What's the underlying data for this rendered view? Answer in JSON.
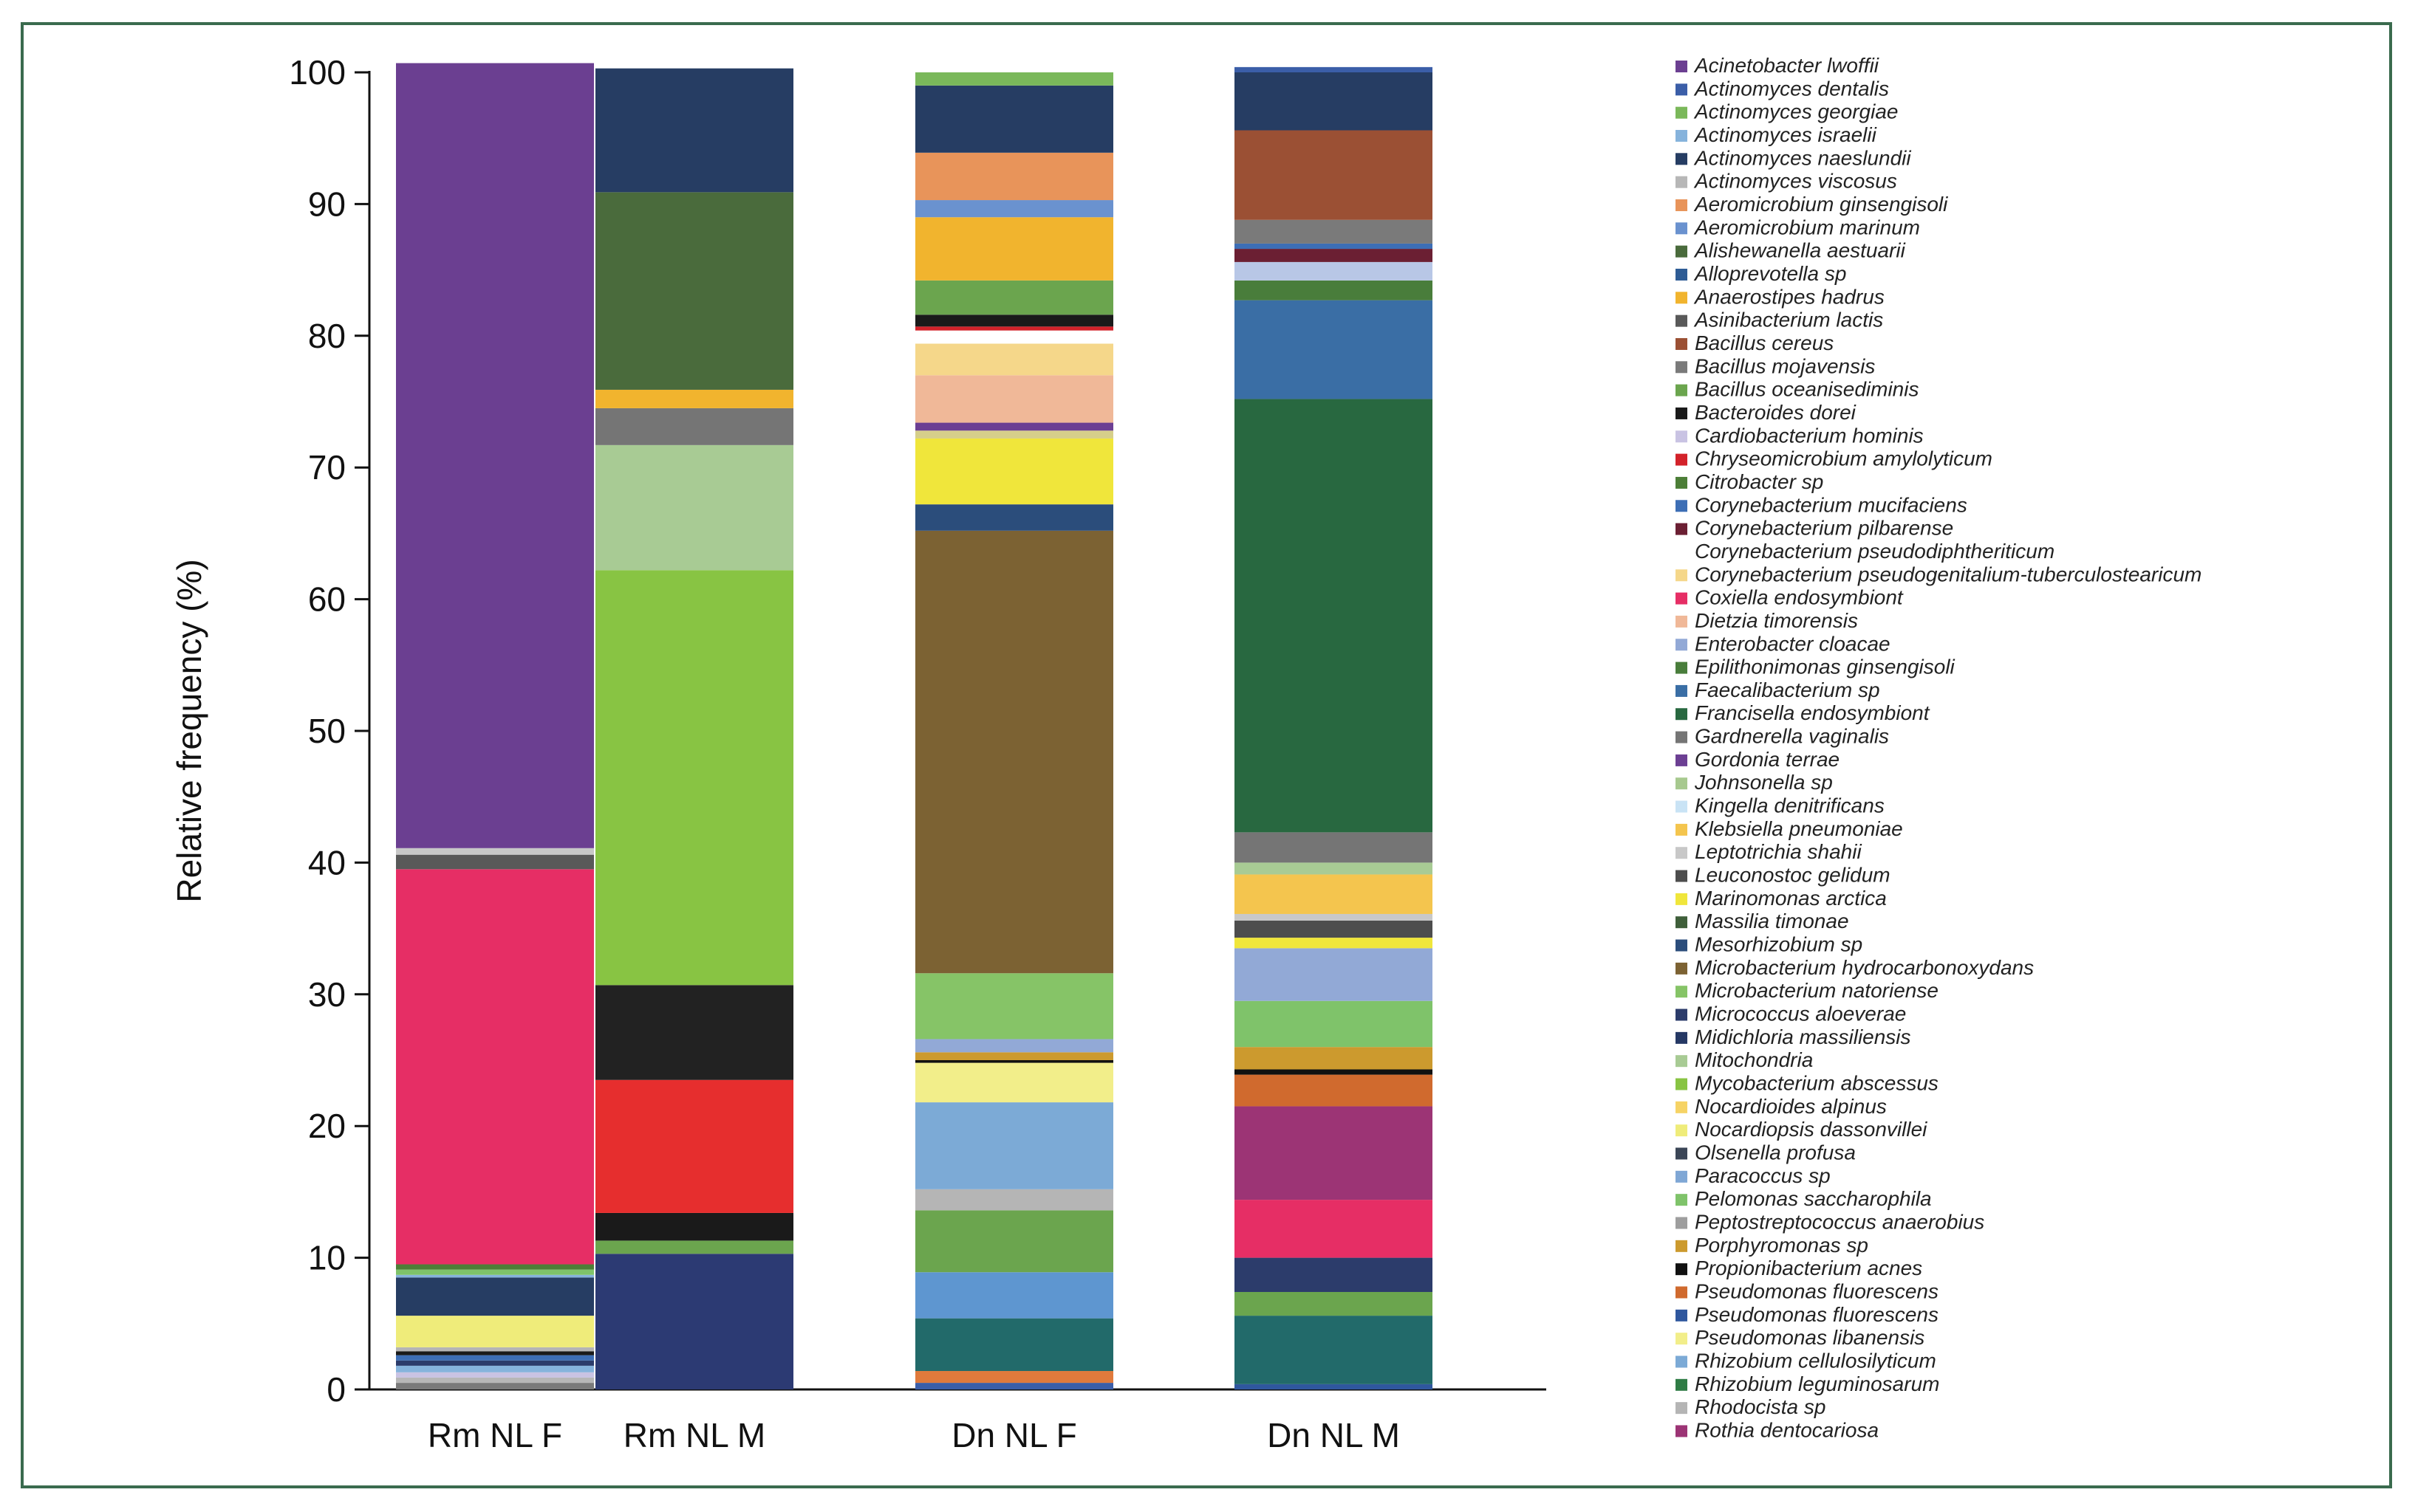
{
  "chart_data": {
    "type": "bar",
    "stacked": true,
    "title": "",
    "xlabel": "",
    "ylabel": "Relative frequency (%)",
    "ylim": [
      0,
      100
    ],
    "yticks": [
      0,
      10,
      20,
      30,
      40,
      50,
      60,
      70,
      80,
      90,
      100
    ],
    "categories": [
      "Rm NL F",
      "Rm NL M",
      "Dn NL F",
      "Dn NL M"
    ],
    "legend_position": "right",
    "species": [
      {
        "name": "Acinetobacter lwoffii",
        "color": "#6b3f91"
      },
      {
        "name": "Actinomyces dentalis",
        "color": "#3b5ea8"
      },
      {
        "name": "Actinomyces georgiae",
        "color": "#7ab85a"
      },
      {
        "name": "Actinomyces israelii",
        "color": "#86b3dc"
      },
      {
        "name": "Actinomyces naeslundii",
        "color": "#263d63"
      },
      {
        "name": "Actinomyces viscosus",
        "color": "#b7b7b7"
      },
      {
        "name": "Aeromicrobium ginsengisoli",
        "color": "#e8945a"
      },
      {
        "name": "Aeromicrobium marinum",
        "color": "#6a92cf"
      },
      {
        "name": "Alishewanella aestuarii",
        "color": "#4a6b3c"
      },
      {
        "name": "Alloprevotella sp",
        "color": "#2e5c95"
      },
      {
        "name": "Anaerostipes hadrus",
        "color": "#f1b42e"
      },
      {
        "name": "Asinibacterium lactis",
        "color": "#595959"
      },
      {
        "name": "Bacillus cereus",
        "color": "#9b5034"
      },
      {
        "name": "Bacillus mojavensis",
        "color": "#7a7a7a"
      },
      {
        "name": "Bacillus oceanisediminis",
        "color": "#6ba54e"
      },
      {
        "name": "Bacteroides dorei",
        "color": "#1a1a1a"
      },
      {
        "name": "Cardiobacterium hominis",
        "color": "#c9c3e3"
      },
      {
        "name": "Chryseomicrobium amylolyticum",
        "color": "#d3222a"
      },
      {
        "name": "Citrobacter sp",
        "color": "#4c7e37"
      },
      {
        "name": "Corynebacterium mucifaciens",
        "color": "#3d6eb5"
      },
      {
        "name": "Corynebacterium pilbarense",
        "color": "#6b1f33"
      },
      {
        "name": "Corynebacterium pseudodiphtheriticum",
        "color": "#ffffff"
      },
      {
        "name": "Corynebacterium pseudogenitalium-tuberculostearicum",
        "color": "#f5d78a"
      },
      {
        "name": "Coxiella endosymbiont",
        "color": "#e62e65"
      },
      {
        "name": "Dietzia timorensis",
        "color": "#f0b898"
      },
      {
        "name": "Enterobacter cloacae",
        "color": "#92a9d6"
      },
      {
        "name": "Epilithonimonas ginsengisoli",
        "color": "#497d3b"
      },
      {
        "name": "Faecalibacterium sp",
        "color": "#3a6ea5"
      },
      {
        "name": "Francisella endosymbiont",
        "color": "#286840"
      },
      {
        "name": "Gardnerella vaginalis",
        "color": "#757575"
      },
      {
        "name": "Gordonia terrae",
        "color": "#6c3f93"
      },
      {
        "name": "Johnsonella sp",
        "color": "#a7c98f"
      },
      {
        "name": "Kingella denitrificans",
        "color": "#c9e3f5"
      },
      {
        "name": "Klebsiella pneumoniae",
        "color": "#f4c54e"
      },
      {
        "name": "Leptotrichia shahii",
        "color": "#c8c8c8"
      },
      {
        "name": "Leuconostoc gelidum",
        "color": "#4d4d4d"
      },
      {
        "name": "Marinomonas arctica",
        "color": "#f0e63b"
      },
      {
        "name": "Massilia timonae",
        "color": "#3f5f3a"
      },
      {
        "name": "Mesorhizobium sp",
        "color": "#2b4d7b"
      },
      {
        "name": "Microbacterium hydrocarbonoxydans",
        "color": "#7c6233"
      },
      {
        "name": "Microbacterium natoriense",
        "color": "#86c467"
      },
      {
        "name": "Micrococcus aloeverae",
        "color": "#2c3c6b"
      },
      {
        "name": "Midichloria massiliensis",
        "color": "#253864"
      },
      {
        "name": "Mitochondria",
        "color": "#a8cb94"
      },
      {
        "name": "Mycobacterium abscessus",
        "color": "#88c443"
      },
      {
        "name": "Nocardioides alpinus",
        "color": "#f6d365"
      },
      {
        "name": "Nocardiopsis dassonvillei",
        "color": "#efec7a"
      },
      {
        "name": "Olsenella profusa",
        "color": "#3b4657"
      },
      {
        "name": "Paracoccus sp",
        "color": "#7fa7d5"
      },
      {
        "name": "Pelomonas saccharophila",
        "color": "#7fc36a"
      },
      {
        "name": "Peptostreptococcus anaerobius",
        "color": "#9e9e9e"
      },
      {
        "name": "Porphyromonas sp",
        "color": "#cc9a2e"
      },
      {
        "name": "Propionibacterium acnes",
        "color": "#111111"
      },
      {
        "name": "Pseudomonas fluorescens",
        "color": "#d06a2e"
      },
      {
        "name": "Pseudomonas fluorescens",
        "color": "#2f579e"
      },
      {
        "name": "Pseudomonas libanensis",
        "color": "#f2ee8a"
      },
      {
        "name": "Rhizobium cellulosilyticum",
        "color": "#7caad6"
      },
      {
        "name": "Rhizobium leguminosarum",
        "color": "#2f7c45"
      },
      {
        "name": "Rhodocista sp",
        "color": "#b5b5b5"
      },
      {
        "name": "Rothia dentocariosa",
        "color": "#9c3475"
      }
    ],
    "series": [
      {
        "name": "Rm NL F",
        "segments": [
          {
            "color": "#7a7a7a",
            "value": 0.5
          },
          {
            "color": "#b7b7b7",
            "value": 0.4
          },
          {
            "color": "#c9c3e3",
            "value": 0.4
          },
          {
            "color": "#86b3dc",
            "value": 0.5
          },
          {
            "color": "#2c3c6b",
            "value": 0.4
          },
          {
            "color": "#3d6eb5",
            "value": 0.4
          },
          {
            "color": "#1a1a1a",
            "value": 0.3
          },
          {
            "color": "#b5b5b5",
            "value": 0.3
          },
          {
            "color": "#efec7a",
            "value": 2.4
          },
          {
            "color": "#263d63",
            "value": 2.9
          },
          {
            "color": "#86b3dc",
            "value": 0.2
          },
          {
            "color": "#7fc36a",
            "value": 0.4
          },
          {
            "color": "#4c7e37",
            "value": 0.4
          },
          {
            "color": "#e62e65",
            "value": 30.0
          },
          {
            "color": "#595959",
            "value": 1.1
          },
          {
            "color": "#c8c8c8",
            "value": 0.5
          },
          {
            "color": "#6b3f91",
            "value": 59.6
          }
        ]
      },
      {
        "name": "Rm NL M",
        "segments": [
          {
            "color": "#2c3a73",
            "value": 10.3
          },
          {
            "color": "#6ba54e",
            "value": 1.0
          },
          {
            "color": "#1a1a1a",
            "value": 2.1
          },
          {
            "color": "#e62e2e",
            "value": 10.1
          },
          {
            "color": "#222222",
            "value": 7.2
          },
          {
            "color": "#88c443",
            "value": 31.5
          },
          {
            "color": "#a8cb94",
            "value": 9.5
          },
          {
            "color": "#757575",
            "value": 2.8
          },
          {
            "color": "#f1b42e",
            "value": 1.4
          },
          {
            "color": "#4a6b3c",
            "value": 15.0
          },
          {
            "color": "#263d63",
            "value": 9.4
          }
        ]
      },
      {
        "name": "Dn NL F",
        "segments": [
          {
            "color": "#3b5ea8",
            "value": 0.5
          },
          {
            "color": "#e07a3c",
            "value": 0.9
          },
          {
            "color": "#226a6a",
            "value": 4.0
          },
          {
            "color": "#5e96d0",
            "value": 3.5
          },
          {
            "color": "#6ba54e",
            "value": 4.7
          },
          {
            "color": "#b5b5b5",
            "value": 1.6
          },
          {
            "color": "#7caad6",
            "value": 6.6
          },
          {
            "color": "#f2ee8a",
            "value": 3.0
          },
          {
            "color": "#111111",
            "value": 0.2
          },
          {
            "color": "#cc9a2e",
            "value": 0.6
          },
          {
            "color": "#92a9d6",
            "value": 1.0
          },
          {
            "color": "#86c467",
            "value": 5.0
          },
          {
            "color": "#7c6233",
            "value": 33.6
          },
          {
            "color": "#2b4d7b",
            "value": 2.0
          },
          {
            "color": "#f0e63b",
            "value": 5.0
          },
          {
            "color": "#d6cf8a",
            "value": 0.6
          },
          {
            "color": "#6c3f93",
            "value": 0.6
          },
          {
            "color": "#f0b898",
            "value": 3.6
          },
          {
            "color": "#f5d78a",
            "value": 2.4
          },
          {
            "color": "#ffffff",
            "value": 1.0
          },
          {
            "color": "#d3222a",
            "value": 0.3
          },
          {
            "color": "#1a1a1a",
            "value": 0.9
          },
          {
            "color": "#6ba54e",
            "value": 2.6
          },
          {
            "color": "#f1b42e",
            "value": 4.8
          },
          {
            "color": "#6a92cf",
            "value": 1.3
          },
          {
            "color": "#e8945a",
            "value": 3.6
          },
          {
            "color": "#263d63",
            "value": 5.1
          },
          {
            "color": "#7ab85a",
            "value": 1.0
          }
        ]
      },
      {
        "name": "Dn NL M",
        "segments": [
          {
            "color": "#2f579e",
            "value": 0.4
          },
          {
            "color": "#226a6a",
            "value": 5.2
          },
          {
            "color": "#6ba54e",
            "value": 1.8
          },
          {
            "color": "#2c3c6b",
            "value": 2.6
          },
          {
            "color": "#e62e65",
            "value": 4.4
          },
          {
            "color": "#9c3475",
            "value": 7.1
          },
          {
            "color": "#d06a2e",
            "value": 2.4
          },
          {
            "color": "#111111",
            "value": 0.4
          },
          {
            "color": "#cc9a2e",
            "value": 1.7
          },
          {
            "color": "#7fc36a",
            "value": 3.5
          },
          {
            "color": "#92a9d6",
            "value": 4.0
          },
          {
            "color": "#f0e63b",
            "value": 0.8
          },
          {
            "color": "#4d4d4d",
            "value": 1.3
          },
          {
            "color": "#c8c8c8",
            "value": 0.5
          },
          {
            "color": "#f4c54e",
            "value": 3.0
          },
          {
            "color": "#a8cb94",
            "value": 0.9
          },
          {
            "color": "#757575",
            "value": 2.3
          },
          {
            "color": "#286840",
            "value": 32.9
          },
          {
            "color": "#3a6ea5",
            "value": 7.5
          },
          {
            "color": "#497d3b",
            "value": 1.5
          },
          {
            "color": "#b8c7e6",
            "value": 1.4
          },
          {
            "color": "#6b1f33",
            "value": 1.0
          },
          {
            "color": "#3d6eb5",
            "value": 0.4
          },
          {
            "color": "#7a7a7a",
            "value": 1.8
          },
          {
            "color": "#9b5034",
            "value": 6.8
          },
          {
            "color": "#263d63",
            "value": 4.4
          },
          {
            "color": "#3b5ea8",
            "value": 0.4
          }
        ]
      }
    ]
  }
}
